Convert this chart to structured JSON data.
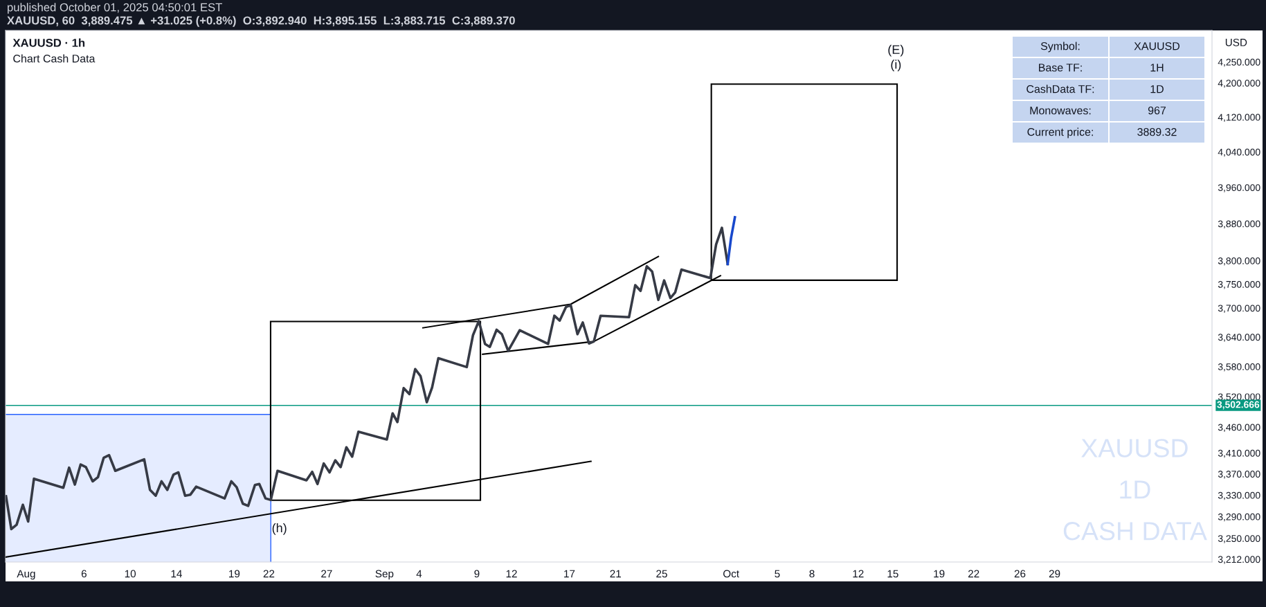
{
  "chart_data": {
    "type": "line",
    "title": "XAUUSD · 1h",
    "subtitle": "Chart Cash Data",
    "ylabel": "USD",
    "log": "y",
    "grid": false,
    "legend": false,
    "marker": "none",
    "line_style": "solid",
    "xlim": [
      "2025-07-30T05:00",
      "2025-11-11T15:00"
    ],
    "xticks": [
      {
        "value": "2025-08-01",
        "label": "Aug"
      },
      {
        "value": "2025-08-06",
        "label": "6"
      },
      {
        "value": "2025-08-10",
        "label": "10"
      },
      {
        "value": "2025-08-14",
        "label": "14"
      },
      {
        "value": "2025-08-19",
        "label": "19"
      },
      {
        "value": "2025-08-22",
        "label": "22"
      },
      {
        "value": "2025-08-27",
        "label": "27"
      },
      {
        "value": "2025-09-01",
        "label": "Sep"
      },
      {
        "value": "2025-09-04",
        "label": "4"
      },
      {
        "value": "2025-09-09",
        "label": "9"
      },
      {
        "value": "2025-09-12",
        "label": "12"
      },
      {
        "value": "2025-09-17",
        "label": "17"
      },
      {
        "value": "2025-09-21",
        "label": "21"
      },
      {
        "value": "2025-09-25",
        "label": "25"
      },
      {
        "value": "2025-10-01",
        "label": "Oct"
      },
      {
        "value": "2025-10-05",
        "label": "5"
      },
      {
        "value": "2025-10-08",
        "label": "8"
      },
      {
        "value": "2025-10-12",
        "label": "12"
      },
      {
        "value": "2025-10-15",
        "label": "15"
      },
      {
        "value": "2025-10-19",
        "label": "19"
      },
      {
        "value": "2025-10-22",
        "label": "22"
      },
      {
        "value": "2025-10-26",
        "label": "26"
      },
      {
        "value": "2025-10-29",
        "label": "29"
      }
    ],
    "ylim": [
      3207,
      4326
    ],
    "yticks": [
      {
        "value": 3212,
        "label": "3,212.000"
      },
      {
        "value": 3250,
        "label": "3,250.000"
      },
      {
        "value": 3290,
        "label": "3,290.000"
      },
      {
        "value": 3330,
        "label": "3,330.000"
      },
      {
        "value": 3370,
        "label": "3,370.000"
      },
      {
        "value": 3410,
        "label": "3,410.000"
      },
      {
        "value": 3460,
        "label": "3,460.000"
      },
      {
        "value": 3520,
        "label": "3,520.000"
      },
      {
        "value": 3580,
        "label": "3,580.000"
      },
      {
        "value": 3640,
        "label": "3,640.000"
      },
      {
        "value": 3700,
        "label": "3,700.000"
      },
      {
        "value": 3750,
        "label": "3,750.000"
      },
      {
        "value": 3800,
        "label": "3,800.000"
      },
      {
        "value": 3880,
        "label": "3,880.000"
      },
      {
        "value": 3960,
        "label": "3,960.000"
      },
      {
        "value": 4040,
        "label": "4,040.000"
      },
      {
        "value": 4120,
        "label": "4,120.000"
      },
      {
        "value": 4200,
        "label": "4,200.000"
      },
      {
        "value": 4250,
        "label": "4,250.000"
      }
    ],
    "ref_lines": [
      {
        "axis": "y",
        "value": 3502.666,
        "label": "3,502.666",
        "color": "#089981"
      }
    ],
    "series": [
      {
        "type": "area",
        "color": "#2962ff",
        "x": [
          "2025-07-30T06:00",
          "2025-08-22T04:00"
        ],
        "values": [
          3485,
          3485
        ]
      },
      {
        "color": "#000000",
        "x": [
          "2025-07-30T06:00",
          "2025-09-18T21:00",
          null,
          "2025-09-04T08:00",
          "2025-09-17T03:00",
          "2025-09-24T17:00",
          null,
          "2025-09-09T12:00",
          "2025-09-19T03:00",
          "2025-09-30T02:00"
        ],
        "values": [
          3216,
          3394,
          null,
          3659,
          3708,
          3809,
          null,
          3605,
          3631,
          3768
        ]
      },
      {
        "color": "#363a45",
        "x": [
          "2025-07-30T06:00",
          "2025-07-30T17:00",
          "2025-07-31T04:00",
          "2025-07-31T17:00",
          "2025-08-01T04:00",
          "2025-08-01T16:00",
          "2025-08-04T05:00",
          "2025-08-04T17:00",
          "2025-08-05T05:00",
          "2025-08-05T17:00",
          "2025-08-06T04:00",
          "2025-08-06T18:00",
          "2025-08-07T05:00",
          "2025-08-07T17:00",
          "2025-08-08T04:00",
          "2025-08-08T17:00",
          "2025-08-11T05:00",
          "2025-08-11T17:00",
          "2025-08-12T05:00",
          "2025-08-12T17:00",
          "2025-08-13T05:00",
          "2025-08-13T18:00",
          "2025-08-14T04:00",
          "2025-08-14T18:00",
          "2025-08-15T05:00",
          "2025-08-15T17:00",
          "2025-08-18T04:00",
          "2025-08-18T18:00",
          "2025-08-19T05:00",
          "2025-08-19T18:00",
          "2025-08-20T05:00",
          "2025-08-20T19:00",
          "2025-08-21T04:00",
          "2025-08-21T17:00",
          "2025-08-22T04:00",
          "2025-08-22T18:00",
          "2025-08-25T06:00",
          "2025-08-25T18:00",
          "2025-08-26T05:00",
          "2025-08-26T18:00",
          "2025-08-27T06:00",
          "2025-08-27T18:00",
          "2025-08-28T05:00",
          "2025-08-28T17:00",
          "2025-08-29T05:00",
          "2025-08-29T18:00",
          "2025-09-01T05:00",
          "2025-09-01T17:00",
          "2025-09-02T03:00",
          "2025-09-02T16:00",
          "2025-09-03T04:00",
          "2025-09-03T16:00",
          "2025-09-04T03:00",
          "2025-09-04T16:00",
          "2025-09-05T03:00",
          "2025-09-05T16:00",
          "2025-09-08T03:00",
          "2025-09-08T16:00",
          "2025-09-09T04:00",
          "2025-09-09T17:00",
          "2025-09-10T03:00",
          "2025-09-10T17:00",
          "2025-09-11T04:00",
          "2025-09-11T17:00",
          "2025-09-12T04:00",
          "2025-09-12T17:00",
          "2025-09-15T04:00",
          "2025-09-15T17:00",
          "2025-09-16T04:00",
          "2025-09-16T17:00",
          "2025-09-17T03:00",
          "2025-09-17T17:00",
          "2025-09-18T04:00",
          "2025-09-18T17:00",
          "2025-09-19T03:00",
          "2025-09-19T17:00",
          "2025-09-22T04:00",
          "2025-09-22T17:00",
          "2025-09-23T04:00",
          "2025-09-23T17:00",
          "2025-09-24T04:00",
          "2025-09-24T17:00",
          "2025-09-25T05:00",
          "2025-09-25T18:00",
          "2025-09-26T04:00",
          "2025-09-26T17:00",
          "2025-09-29T05:00",
          "2025-09-29T17:00",
          "2025-09-30T05:00",
          "2025-09-30T17:00"
        ],
        "values": [
          3328,
          3267,
          3275,
          3312,
          3281,
          3361,
          3344,
          3382,
          3350,
          3388,
          3383,
          3356,
          3364,
          3401,
          3406,
          3376,
          3398,
          3340,
          3329,
          3356,
          3340,
          3369,
          3373,
          3329,
          3331,
          3346,
          3324,
          3356,
          3345,
          3314,
          3310,
          3349,
          3351,
          3324,
          3321,
          3376,
          3358,
          3374,
          3351,
          3390,
          3373,
          3396,
          3383,
          3421,
          3403,
          3451,
          3436,
          3487,
          3470,
          3537,
          3525,
          3575,
          3561,
          3509,
          3538,
          3597,
          3579,
          3644,
          3673,
          3626,
          3620,
          3655,
          3646,
          3612,
          3631,
          3654,
          3626,
          3684,
          3674,
          3702,
          3706,
          3646,
          3670,
          3627,
          3631,
          3684,
          3681,
          3748,
          3736,
          3788,
          3777,
          3717,
          3758,
          3721,
          3733,
          3781,
          3763,
          3835,
          3871,
          3793
        ]
      },
      {
        "color": "#1848cc",
        "x": [
          "2025-09-30T17:00",
          "2025-10-01T00:00",
          "2025-10-01T08:00"
        ],
        "values": [
          3793,
          3849,
          3894
        ]
      }
    ],
    "annotations": [
      "published October 01, 2025 04:50:01 EST",
      "XAUUSD, 60  3,889.475 ▲ +31.025 (+0.8%)  O:3,892.940  H:3,895.155  L:3,883.715  C:3,889.370",
      "Symbol:",
      "XAUUSD",
      "Base TF:",
      "1H",
      "CashData TF:",
      "1D",
      "Monowaves:",
      "967",
      "Current price:",
      "3889.32",
      "XAUUSD",
      "1D",
      "CASH DATA",
      "(h)",
      "(E)",
      "(i)"
    ]
  }
}
